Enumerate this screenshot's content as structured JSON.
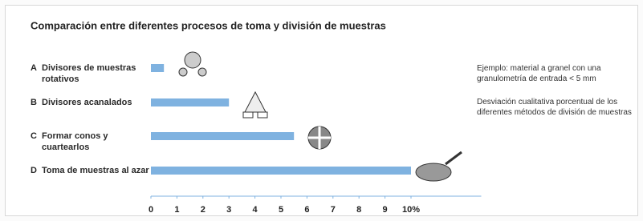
{
  "chart_data": {
    "type": "bar",
    "title": "Comparación entre diferentes procesos de toma y división de muestras",
    "letters": [
      "A",
      "B",
      "C",
      "D"
    ],
    "categories": [
      "Divisores de muestras rotativos",
      "Divisores acanalados",
      "Formar conos y cuartearlos",
      "Toma de muestras al azar"
    ],
    "values": [
      0.5,
      3,
      5.5,
      10
    ],
    "color": "#7fb2e0",
    "xlim": [
      0,
      12.7
    ],
    "xticks": [
      0,
      1,
      2,
      3,
      4,
      5,
      6,
      7,
      8,
      9,
      {
        "value": 10,
        "label": "10%"
      }
    ],
    "annotations": [
      "Ejemplo: material a granel con una granulometría de entrada < 5 mm",
      "Desviación cualitativa porcentual de los diferentes métodos de división de muestras"
    ]
  }
}
